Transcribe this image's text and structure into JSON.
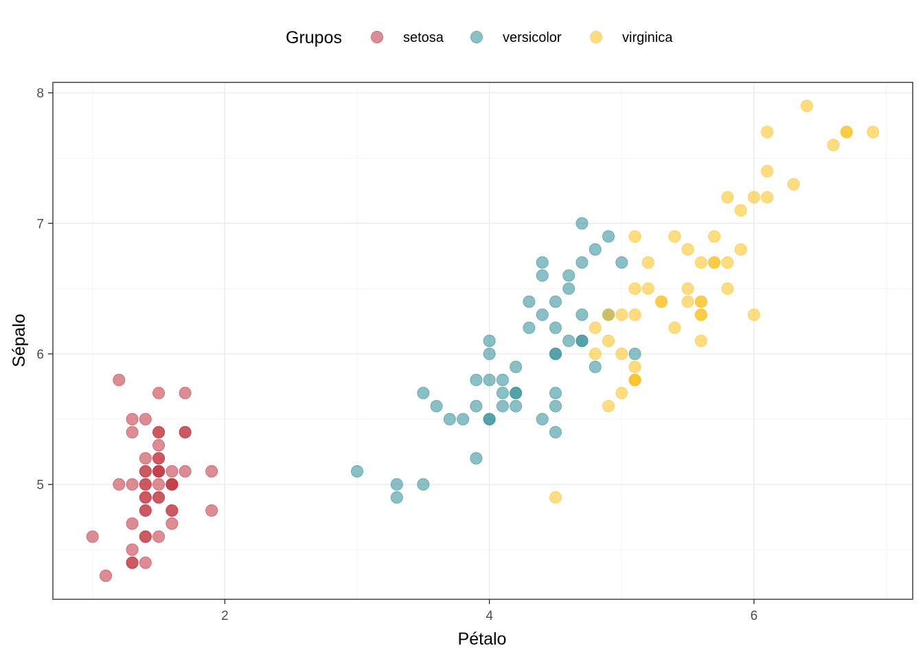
{
  "chart_data": {
    "type": "scatter",
    "xlabel": "Pétalo",
    "ylabel": "Sépalo",
    "xlim": [
      0.7,
      7.2
    ],
    "ylim": [
      4.12,
      8.08
    ],
    "x_ticks": [
      2,
      4,
      6
    ],
    "y_ticks": [
      5,
      6,
      7,
      8
    ],
    "grid": true,
    "legend": {
      "title": "Grupos",
      "position": "top"
    },
    "series": [
      {
        "name": "setosa",
        "color": "#c0303a",
        "points": [
          [
            1.4,
            5.1
          ],
          [
            1.4,
            4.9
          ],
          [
            1.3,
            4.7
          ],
          [
            1.5,
            4.6
          ],
          [
            1.4,
            5.0
          ],
          [
            1.7,
            5.4
          ],
          [
            1.4,
            4.6
          ],
          [
            1.5,
            5.0
          ],
          [
            1.4,
            4.4
          ],
          [
            1.5,
            4.9
          ],
          [
            1.5,
            5.4
          ],
          [
            1.6,
            4.8
          ],
          [
            1.4,
            4.8
          ],
          [
            1.1,
            4.3
          ],
          [
            1.2,
            5.8
          ],
          [
            1.5,
            5.7
          ],
          [
            1.3,
            5.4
          ],
          [
            1.4,
            5.1
          ],
          [
            1.7,
            5.7
          ],
          [
            1.5,
            5.1
          ],
          [
            1.7,
            5.4
          ],
          [
            1.5,
            5.1
          ],
          [
            1.0,
            4.6
          ],
          [
            1.7,
            5.1
          ],
          [
            1.9,
            4.8
          ],
          [
            1.6,
            5.0
          ],
          [
            1.6,
            5.0
          ],
          [
            1.5,
            5.2
          ],
          [
            1.4,
            5.2
          ],
          [
            1.6,
            4.7
          ],
          [
            1.6,
            4.8
          ],
          [
            1.5,
            5.4
          ],
          [
            1.5,
            5.2
          ],
          [
            1.4,
            5.5
          ],
          [
            1.5,
            4.9
          ],
          [
            1.2,
            5.0
          ],
          [
            1.3,
            5.5
          ],
          [
            1.4,
            4.9
          ],
          [
            1.3,
            4.4
          ],
          [
            1.5,
            5.1
          ],
          [
            1.3,
            5.0
          ],
          [
            1.3,
            4.5
          ],
          [
            1.3,
            4.4
          ],
          [
            1.6,
            5.0
          ],
          [
            1.9,
            5.1
          ],
          [
            1.4,
            4.8
          ],
          [
            1.6,
            5.1
          ],
          [
            1.4,
            4.6
          ],
          [
            1.5,
            5.3
          ],
          [
            1.4,
            5.0
          ]
        ]
      },
      {
        "name": "versicolor",
        "color": "#2a8a96",
        "points": [
          [
            4.7,
            7.0
          ],
          [
            4.5,
            6.4
          ],
          [
            4.9,
            6.9
          ],
          [
            4.0,
            5.5
          ],
          [
            4.6,
            6.5
          ],
          [
            4.5,
            5.7
          ],
          [
            4.7,
            6.3
          ],
          [
            3.3,
            4.9
          ],
          [
            4.6,
            6.6
          ],
          [
            3.9,
            5.2
          ],
          [
            3.5,
            5.0
          ],
          [
            4.2,
            5.9
          ],
          [
            4.0,
            6.0
          ],
          [
            4.7,
            6.1
          ],
          [
            3.6,
            5.6
          ],
          [
            4.4,
            6.7
          ],
          [
            4.5,
            5.6
          ],
          [
            4.1,
            5.8
          ],
          [
            4.5,
            6.2
          ],
          [
            3.9,
            5.6
          ],
          [
            4.8,
            5.9
          ],
          [
            4.0,
            6.1
          ],
          [
            4.9,
            6.3
          ],
          [
            4.7,
            6.1
          ],
          [
            4.3,
            6.4
          ],
          [
            4.4,
            6.6
          ],
          [
            4.8,
            6.8
          ],
          [
            5.0,
            6.7
          ],
          [
            4.5,
            6.0
          ],
          [
            3.5,
            5.7
          ],
          [
            3.8,
            5.5
          ],
          [
            3.7,
            5.5
          ],
          [
            3.9,
            5.8
          ],
          [
            5.1,
            6.0
          ],
          [
            4.5,
            5.4
          ],
          [
            4.5,
            6.0
          ],
          [
            4.7,
            6.7
          ],
          [
            4.4,
            6.3
          ],
          [
            4.1,
            5.6
          ],
          [
            4.0,
            5.5
          ],
          [
            4.4,
            5.5
          ],
          [
            4.6,
            6.1
          ],
          [
            4.0,
            5.8
          ],
          [
            3.3,
            5.0
          ],
          [
            4.2,
            5.6
          ],
          [
            4.2,
            5.7
          ],
          [
            4.2,
            5.7
          ],
          [
            4.3,
            6.2
          ],
          [
            3.0,
            5.1
          ],
          [
            4.1,
            5.7
          ]
        ]
      },
      {
        "name": "virginica",
        "color": "#fcbf1c",
        "points": [
          [
            6.0,
            6.3
          ],
          [
            5.1,
            5.8
          ],
          [
            5.9,
            7.1
          ],
          [
            5.6,
            6.3
          ],
          [
            5.8,
            6.5
          ],
          [
            6.6,
            7.6
          ],
          [
            4.5,
            4.9
          ],
          [
            6.3,
            7.3
          ],
          [
            5.8,
            6.7
          ],
          [
            6.1,
            7.2
          ],
          [
            5.1,
            6.5
          ],
          [
            5.3,
            6.4
          ],
          [
            5.5,
            6.8
          ],
          [
            5.0,
            5.7
          ],
          [
            5.1,
            5.8
          ],
          [
            5.3,
            6.4
          ],
          [
            5.5,
            6.5
          ],
          [
            6.7,
            7.7
          ],
          [
            6.9,
            7.7
          ],
          [
            5.0,
            6.0
          ],
          [
            5.7,
            6.9
          ],
          [
            4.9,
            5.6
          ],
          [
            6.7,
            7.7
          ],
          [
            4.9,
            6.3
          ],
          [
            5.7,
            6.7
          ],
          [
            6.0,
            7.2
          ],
          [
            4.8,
            6.2
          ],
          [
            4.9,
            6.1
          ],
          [
            5.6,
            6.4
          ],
          [
            5.8,
            7.2
          ],
          [
            6.1,
            7.4
          ],
          [
            6.4,
            7.9
          ],
          [
            5.6,
            6.4
          ],
          [
            5.1,
            6.3
          ],
          [
            5.6,
            6.1
          ],
          [
            6.1,
            7.7
          ],
          [
            5.6,
            6.3
          ],
          [
            5.5,
            6.4
          ],
          [
            4.8,
            6.0
          ],
          [
            5.4,
            6.9
          ],
          [
            5.6,
            6.7
          ],
          [
            5.1,
            6.9
          ],
          [
            5.1,
            5.8
          ],
          [
            5.9,
            6.8
          ],
          [
            5.7,
            6.7
          ],
          [
            5.2,
            6.7
          ],
          [
            5.0,
            6.3
          ],
          [
            5.2,
            6.5
          ],
          [
            5.4,
            6.2
          ],
          [
            5.1,
            5.9
          ]
        ]
      }
    ]
  }
}
